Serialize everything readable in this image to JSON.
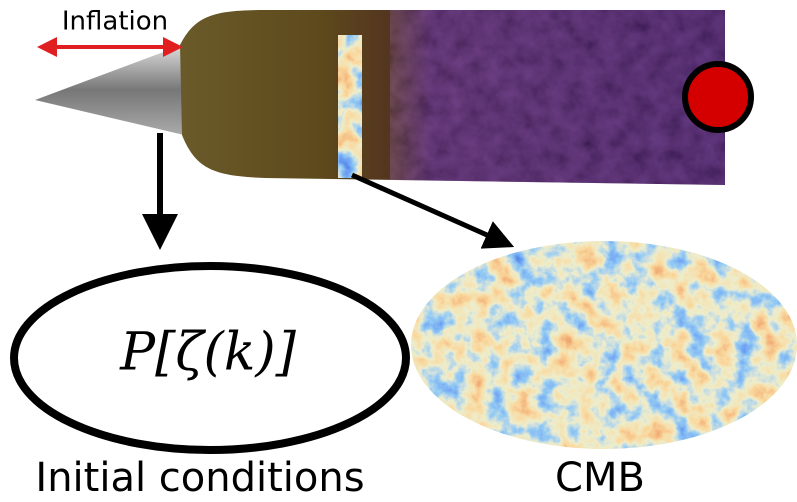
{
  "labels": {
    "inflation": "Inflation",
    "formula": "P[ζ(k)]",
    "initial": "Initial conditions",
    "cmb": "CMB"
  }
}
